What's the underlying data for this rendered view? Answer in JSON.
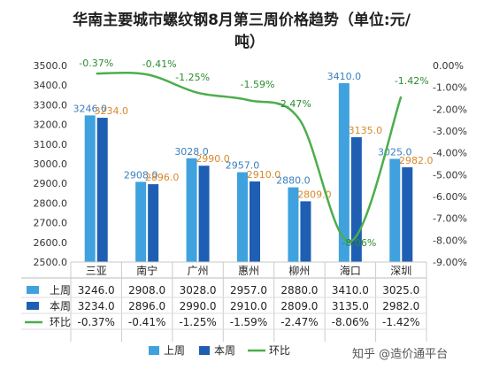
{
  "chart_data": {
    "type": "bar",
    "title_line1": "华南主要城市螺纹钢8月第三周价格趋势（单位:元/",
    "title_line2": "吨）",
    "categories": [
      "三亚",
      "南宁",
      "广州",
      "惠州",
      "柳州",
      "海口",
      "深圳"
    ],
    "series": [
      {
        "name": "上周",
        "values": [
          3246.0,
          2908.0,
          3028.0,
          2957.0,
          2880.0,
          3410.0,
          3025.0
        ],
        "color": "#3fa2de",
        "label_color": "#3a7fbf"
      },
      {
        "name": "本周",
        "values": [
          3234.0,
          2896.0,
          2990.0,
          2910.0,
          2809.0,
          3135.0,
          2982.0
        ],
        "color": "#1f5fb3",
        "label_color": "#d9892a"
      },
      {
        "name": "环比",
        "values": [
          -0.37,
          -0.41,
          -1.25,
          -1.59,
          -2.47,
          -8.06,
          -1.42
        ],
        "color": "#4cae4c",
        "type": "line",
        "axis": "right"
      }
    ],
    "left_axis": {
      "min": 2500,
      "max": 3500,
      "step": 100,
      "ticks": [
        "2500.0",
        "2600.0",
        "2700.0",
        "2800.0",
        "2900.0",
        "3000.0",
        "3100.0",
        "3200.0",
        "3300.0",
        "3400.0",
        "3500.0"
      ]
    },
    "right_axis": {
      "min": -9,
      "max": 0,
      "step": 1,
      "ticks": [
        "-9.00%",
        "-8.00%",
        "-7.00%",
        "-6.00%",
        "-5.00%",
        "-4.00%",
        "-3.00%",
        "-2.00%",
        "-1.00%",
        "0.00%"
      ]
    },
    "bar_labels_prev": [
      "3246.0",
      "2908.0",
      "3028.0",
      "2957.0",
      "2880.0",
      "3410.0",
      "3025.0"
    ],
    "bar_labels_cur": [
      "3234.0",
      "2896.0",
      "2990.0",
      "2910.0",
      "2809.0",
      "3135.0",
      "2982.0"
    ],
    "pct_labels": [
      "-0.37%",
      "-0.41%",
      "-1.25%",
      "-1.59%",
      "-2.47%",
      "-8.06%",
      "-1.42%"
    ],
    "table": {
      "rows": [
        {
          "label": "上周",
          "cells": [
            "3246.0",
            "2908.0",
            "3028.0",
            "2957.0",
            "2880.0",
            "3410.0",
            "3025.0"
          ]
        },
        {
          "label": "本周",
          "cells": [
            "3234.0",
            "2896.0",
            "2990.0",
            "2910.0",
            "2809.0",
            "3135.0",
            "2982.0"
          ]
        },
        {
          "label": "环比",
          "cells": [
            "-0.37%",
            "-0.41%",
            "-1.25%",
            "-1.59%",
            "-2.47%",
            "-8.06%",
            "-1.42%"
          ]
        }
      ]
    },
    "legend": [
      "上周",
      "本周",
      "环比"
    ],
    "legend_position": "bottom",
    "grid": false
  },
  "watermark": {
    "site": "zhihu",
    "text": "知乎 @造价通平台"
  }
}
